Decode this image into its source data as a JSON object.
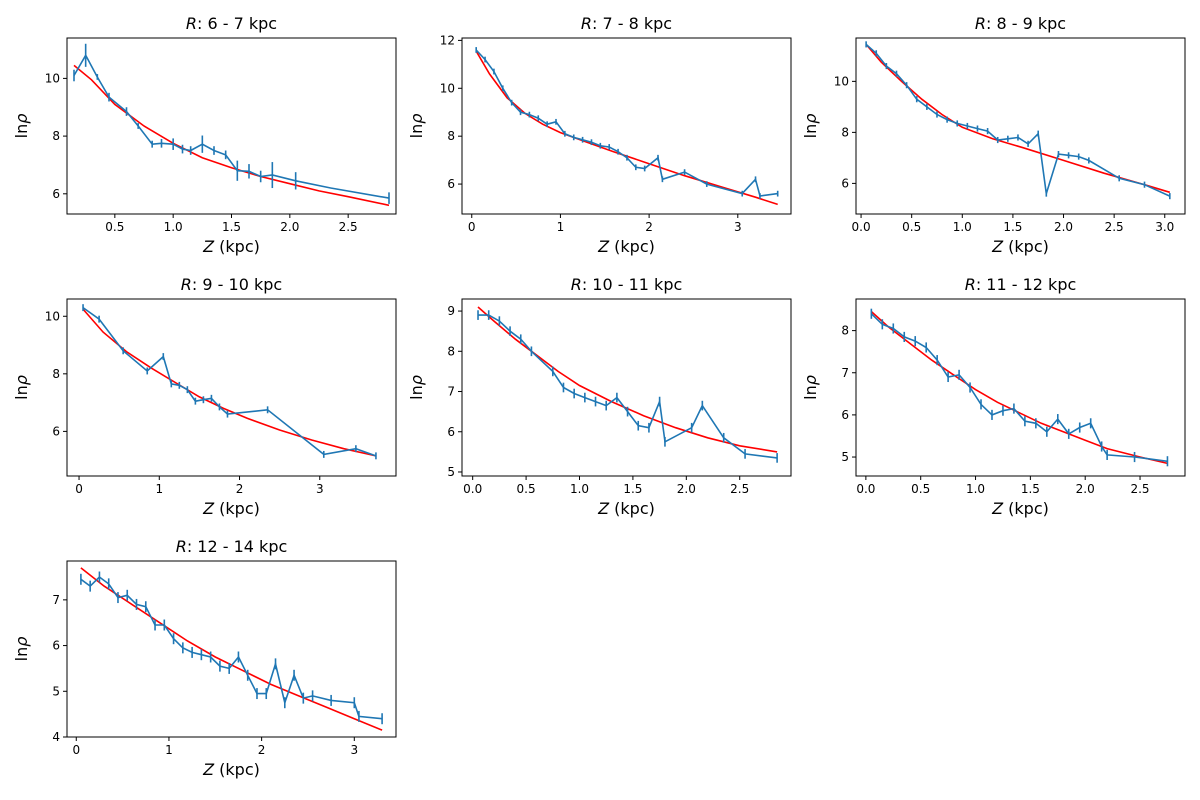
{
  "figure_title": "",
  "colors": {
    "data": "#1f77b4",
    "fit": "#ff0000",
    "axis": "#000000",
    "background": "#ffffff"
  },
  "chart_data": [
    {
      "type": "line",
      "title_prefix": "R",
      "title_range": ": 6 - 7 kpc",
      "xlabel_var": "Z",
      "xlabel_unit": " (kpc)",
      "ylabel_pre": "ln",
      "ylabel_var": "ρ",
      "xlim": [
        0.09,
        2.91
      ],
      "ylim": [
        5.3,
        11.4
      ],
      "xticks": [
        0.5,
        1.0,
        1.5,
        2.0,
        2.5
      ],
      "xtick_labels": [
        "0.5",
        "1.0",
        "1.5",
        "2.0",
        "2.5"
      ],
      "yticks": [
        6,
        8,
        10
      ],
      "ytick_labels": [
        "6",
        "8",
        "10"
      ],
      "series": [
        {
          "name": "data",
          "x": [
            0.15,
            0.25,
            0.35,
            0.45,
            0.6,
            0.7,
            0.82,
            0.9,
            1.0,
            1.08,
            1.15,
            1.25,
            1.35,
            1.45,
            1.55,
            1.65,
            1.75,
            1.85,
            2.05,
            2.35,
            2.85
          ],
          "y": [
            10.1,
            10.8,
            10.05,
            9.35,
            8.85,
            8.35,
            7.72,
            7.75,
            7.72,
            7.55,
            7.5,
            7.72,
            7.5,
            7.35,
            6.8,
            6.78,
            6.6,
            6.65,
            6.45,
            6.2,
            5.85
          ],
          "err": [
            0.2,
            0.4,
            0.1,
            0.15,
            0.15,
            0.1,
            0.12,
            0.15,
            0.2,
            0.15,
            0.15,
            0.3,
            0.15,
            0.15,
            0.35,
            0.25,
            0.2,
            0.45,
            0.3,
            0,
            0.2
          ]
        },
        {
          "name": "fit",
          "x": [
            0.15,
            0.3,
            0.5,
            0.75,
            1.0,
            1.25,
            1.5,
            1.75,
            2.0,
            2.25,
            2.5,
            2.85
          ],
          "y": [
            10.45,
            9.95,
            9.1,
            8.35,
            7.75,
            7.25,
            6.9,
            6.6,
            6.35,
            6.1,
            5.9,
            5.6
          ]
        }
      ]
    },
    {
      "type": "line",
      "title_prefix": "R",
      "title_range": ": 7 - 8 kpc",
      "xlabel_var": "Z",
      "xlabel_unit": " (kpc)",
      "ylabel_pre": "ln",
      "ylabel_var": "ρ",
      "xlim": [
        -0.11,
        3.6
      ],
      "ylim": [
        4.75,
        12.1
      ],
      "xticks": [
        0,
        1,
        2,
        3
      ],
      "xtick_labels": [
        "0",
        "1",
        "2",
        "3"
      ],
      "yticks": [
        6,
        8,
        10,
        12
      ],
      "ytick_labels": [
        "6",
        "8",
        "10",
        "12"
      ],
      "series": [
        {
          "name": "data",
          "x": [
            0.05,
            0.15,
            0.25,
            0.35,
            0.45,
            0.55,
            0.65,
            0.75,
            0.85,
            0.95,
            1.05,
            1.15,
            1.25,
            1.35,
            1.45,
            1.55,
            1.65,
            1.75,
            1.85,
            1.95,
            2.1,
            2.15,
            2.4,
            2.65,
            3.05,
            3.2,
            3.25,
            3.45
          ],
          "y": [
            11.6,
            11.2,
            10.7,
            10.0,
            9.4,
            9.0,
            8.9,
            8.75,
            8.5,
            8.6,
            8.1,
            7.95,
            7.85,
            7.75,
            7.6,
            7.55,
            7.35,
            7.1,
            6.7,
            6.65,
            7.1,
            6.2,
            6.5,
            6.0,
            5.6,
            6.2,
            5.5,
            5.6
          ]
        },
        {
          "name": "fit",
          "x": [
            0.05,
            0.2,
            0.4,
            0.6,
            0.8,
            1.0,
            1.3,
            1.6,
            2.0,
            2.4,
            2.8,
            3.2,
            3.45
          ],
          "y": [
            11.55,
            10.6,
            9.6,
            8.95,
            8.5,
            8.15,
            7.75,
            7.35,
            6.85,
            6.35,
            5.9,
            5.45,
            5.15
          ]
        }
      ]
    },
    {
      "type": "line",
      "title_prefix": "R",
      "title_range": ": 8 - 9 kpc",
      "xlabel_var": "Z",
      "xlabel_unit": " (kpc)",
      "ylabel_pre": "ln",
      "ylabel_var": "ρ",
      "xlim": [
        -0.05,
        3.2
      ],
      "ylim": [
        4.8,
        11.7
      ],
      "xticks": [
        0.0,
        0.5,
        1.0,
        1.5,
        2.0,
        2.5,
        3.0
      ],
      "xtick_labels": [
        "0.0",
        "0.5",
        "1.0",
        "1.5",
        "2.0",
        "2.5",
        "3.0"
      ],
      "yticks": [
        6,
        8,
        10
      ],
      "ytick_labels": [
        "6",
        "8",
        "10"
      ],
      "series": [
        {
          "name": "data",
          "x": [
            0.05,
            0.15,
            0.25,
            0.35,
            0.45,
            0.55,
            0.65,
            0.75,
            0.85,
            0.95,
            1.05,
            1.15,
            1.25,
            1.35,
            1.45,
            1.55,
            1.65,
            1.75,
            1.83,
            1.95,
            2.05,
            2.15,
            2.25,
            2.55,
            2.8,
            3.05
          ],
          "y": [
            11.45,
            11.1,
            10.6,
            10.3,
            9.85,
            9.3,
            9.0,
            8.7,
            8.5,
            8.35,
            8.25,
            8.15,
            8.05,
            7.7,
            7.75,
            7.8,
            7.55,
            7.95,
            5.6,
            7.15,
            7.1,
            7.05,
            6.9,
            6.2,
            5.95,
            5.5
          ]
        },
        {
          "name": "fit",
          "x": [
            0.05,
            0.2,
            0.4,
            0.6,
            0.8,
            1.0,
            1.3,
            1.6,
            2.0,
            2.4,
            2.8,
            3.05
          ],
          "y": [
            11.45,
            10.75,
            10.0,
            9.3,
            8.7,
            8.2,
            7.75,
            7.4,
            6.9,
            6.4,
            5.95,
            5.65
          ]
        }
      ]
    },
    {
      "type": "line",
      "title_prefix": "R",
      "title_range": ": 9 - 10 kpc",
      "xlabel_var": "Z",
      "xlabel_unit": " (kpc)",
      "ylabel_pre": "ln",
      "ylabel_var": "ρ",
      "xlim": [
        -0.15,
        3.95
      ],
      "ylim": [
        4.45,
        10.6
      ],
      "xticks": [
        0,
        1,
        2,
        3
      ],
      "xtick_labels": [
        "0",
        "1",
        "2",
        "3"
      ],
      "yticks": [
        6,
        8,
        10
      ],
      "ytick_labels": [
        "6",
        "8",
        "10"
      ],
      "series": [
        {
          "name": "data",
          "x": [
            0.05,
            0.25,
            0.55,
            0.85,
            1.05,
            1.15,
            1.25,
            1.35,
            1.45,
            1.55,
            1.65,
            1.75,
            1.85,
            2.35,
            3.05,
            3.45,
            3.7
          ],
          "y": [
            10.3,
            9.9,
            8.8,
            8.1,
            8.6,
            7.65,
            7.6,
            7.45,
            7.05,
            7.1,
            7.15,
            6.85,
            6.6,
            6.75,
            5.2,
            5.4,
            5.15
          ]
        },
        {
          "name": "fit",
          "x": [
            0.05,
            0.3,
            0.6,
            0.9,
            1.2,
            1.5,
            1.8,
            2.1,
            2.5,
            2.9,
            3.3,
            3.7
          ],
          "y": [
            10.25,
            9.45,
            8.75,
            8.2,
            7.7,
            7.2,
            6.8,
            6.45,
            6.05,
            5.7,
            5.4,
            5.15
          ]
        }
      ]
    },
    {
      "type": "line",
      "title_prefix": "R",
      "title_range": ": 10 - 11 kpc",
      "xlabel_var": "Z",
      "xlabel_unit": " (kpc)",
      "ylabel_pre": "ln",
      "ylabel_var": "ρ",
      "xlim": [
        -0.1,
        2.98
      ],
      "ylim": [
        4.9,
        9.3
      ],
      "xticks": [
        0.0,
        0.5,
        1.0,
        1.5,
        2.0,
        2.5
      ],
      "xtick_labels": [
        "0.0",
        "0.5",
        "1.0",
        "1.5",
        "2.0",
        "2.5"
      ],
      "yticks": [
        5,
        6,
        7,
        8,
        9
      ],
      "ytick_labels": [
        "5",
        "6",
        "7",
        "8",
        "9"
      ],
      "series": [
        {
          "name": "data",
          "x": [
            0.05,
            0.15,
            0.25,
            0.35,
            0.45,
            0.55,
            0.75,
            0.85,
            0.95,
            1.05,
            1.15,
            1.25,
            1.35,
            1.45,
            1.55,
            1.65,
            1.75,
            1.8,
            2.05,
            2.15,
            2.35,
            2.55,
            2.85
          ],
          "y": [
            8.9,
            8.9,
            8.75,
            8.5,
            8.3,
            8.0,
            7.5,
            7.1,
            6.95,
            6.85,
            6.75,
            6.65,
            6.85,
            6.5,
            6.15,
            6.1,
            6.75,
            5.75,
            6.1,
            6.65,
            5.85,
            5.45,
            5.35
          ]
        },
        {
          "name": "fit",
          "x": [
            0.05,
            0.2,
            0.4,
            0.6,
            0.8,
            1.0,
            1.3,
            1.6,
            1.9,
            2.2,
            2.5,
            2.85
          ],
          "y": [
            9.1,
            8.75,
            8.3,
            7.9,
            7.5,
            7.15,
            6.75,
            6.4,
            6.1,
            5.85,
            5.65,
            5.5
          ]
        }
      ]
    },
    {
      "type": "line",
      "title_prefix": "R",
      "title_range": ": 11 - 12 kpc",
      "xlabel_var": "Z",
      "xlabel_unit": " (kpc)",
      "ylabel_pre": "ln",
      "ylabel_var": "ρ",
      "xlim": [
        -0.09,
        2.91
      ],
      "ylim": [
        4.55,
        8.75
      ],
      "xticks": [
        0.0,
        0.5,
        1.0,
        1.5,
        2.0,
        2.5
      ],
      "xtick_labels": [
        "0.0",
        "0.5",
        "1.0",
        "1.5",
        "2.0",
        "2.5"
      ],
      "yticks": [
        5,
        6,
        7,
        8
      ],
      "ytick_labels": [
        "5",
        "6",
        "7",
        "8"
      ],
      "series": [
        {
          "name": "data",
          "x": [
            0.05,
            0.15,
            0.25,
            0.35,
            0.45,
            0.55,
            0.65,
            0.75,
            0.85,
            0.95,
            1.05,
            1.15,
            1.25,
            1.35,
            1.45,
            1.55,
            1.65,
            1.75,
            1.85,
            1.95,
            2.05,
            2.15,
            2.2,
            2.45,
            2.75
          ],
          "y": [
            8.4,
            8.15,
            8.05,
            7.85,
            7.75,
            7.6,
            7.3,
            6.9,
            6.95,
            6.65,
            6.25,
            6.0,
            6.1,
            6.15,
            5.85,
            5.8,
            5.6,
            5.9,
            5.55,
            5.7,
            5.8,
            5.25,
            5.05,
            5.0,
            4.9
          ]
        },
        {
          "name": "fit",
          "x": [
            0.05,
            0.2,
            0.4,
            0.6,
            0.8,
            1.0,
            1.2,
            1.4,
            1.6,
            1.8,
            2.0,
            2.2,
            2.5,
            2.75
          ],
          "y": [
            8.45,
            8.1,
            7.7,
            7.3,
            6.95,
            6.6,
            6.3,
            6.05,
            5.8,
            5.6,
            5.4,
            5.2,
            5.0,
            4.85
          ]
        }
      ]
    },
    {
      "type": "line",
      "title_prefix": "R",
      "title_range": ": 12 - 14 kpc",
      "xlabel_var": "Z",
      "xlabel_unit": " (kpc)",
      "ylabel_pre": "ln",
      "ylabel_var": "ρ",
      "xlim": [
        -0.1,
        3.45
      ],
      "ylim": [
        4.0,
        7.85
      ],
      "xticks": [
        0,
        1,
        2,
        3
      ],
      "xtick_labels": [
        "0",
        "1",
        "2",
        "3"
      ],
      "yticks": [
        4,
        5,
        6,
        7
      ],
      "ytick_labels": [
        "4",
        "5",
        "6",
        "7"
      ],
      "series": [
        {
          "name": "data",
          "x": [
            0.05,
            0.15,
            0.25,
            0.35,
            0.45,
            0.55,
            0.65,
            0.75,
            0.85,
            0.95,
            1.05,
            1.15,
            1.25,
            1.35,
            1.45,
            1.55,
            1.65,
            1.75,
            1.85,
            1.95,
            2.05,
            2.15,
            2.25,
            2.35,
            2.45,
            2.55,
            2.75,
            3.0,
            3.05,
            3.3
          ],
          "y": [
            7.45,
            7.3,
            7.5,
            7.35,
            7.05,
            7.1,
            6.9,
            6.85,
            6.45,
            6.45,
            6.15,
            5.95,
            5.85,
            5.8,
            5.75,
            5.55,
            5.5,
            5.75,
            5.35,
            4.95,
            4.95,
            5.6,
            4.75,
            5.35,
            4.85,
            4.9,
            4.8,
            4.75,
            4.45,
            4.4
          ]
        },
        {
          "name": "fit",
          "x": [
            0.05,
            0.3,
            0.6,
            0.9,
            1.2,
            1.5,
            1.8,
            2.1,
            2.4,
            2.7,
            3.0,
            3.3
          ],
          "y": [
            7.7,
            7.3,
            6.9,
            6.5,
            6.1,
            5.75,
            5.45,
            5.15,
            4.9,
            4.65,
            4.4,
            4.15
          ]
        }
      ]
    }
  ]
}
